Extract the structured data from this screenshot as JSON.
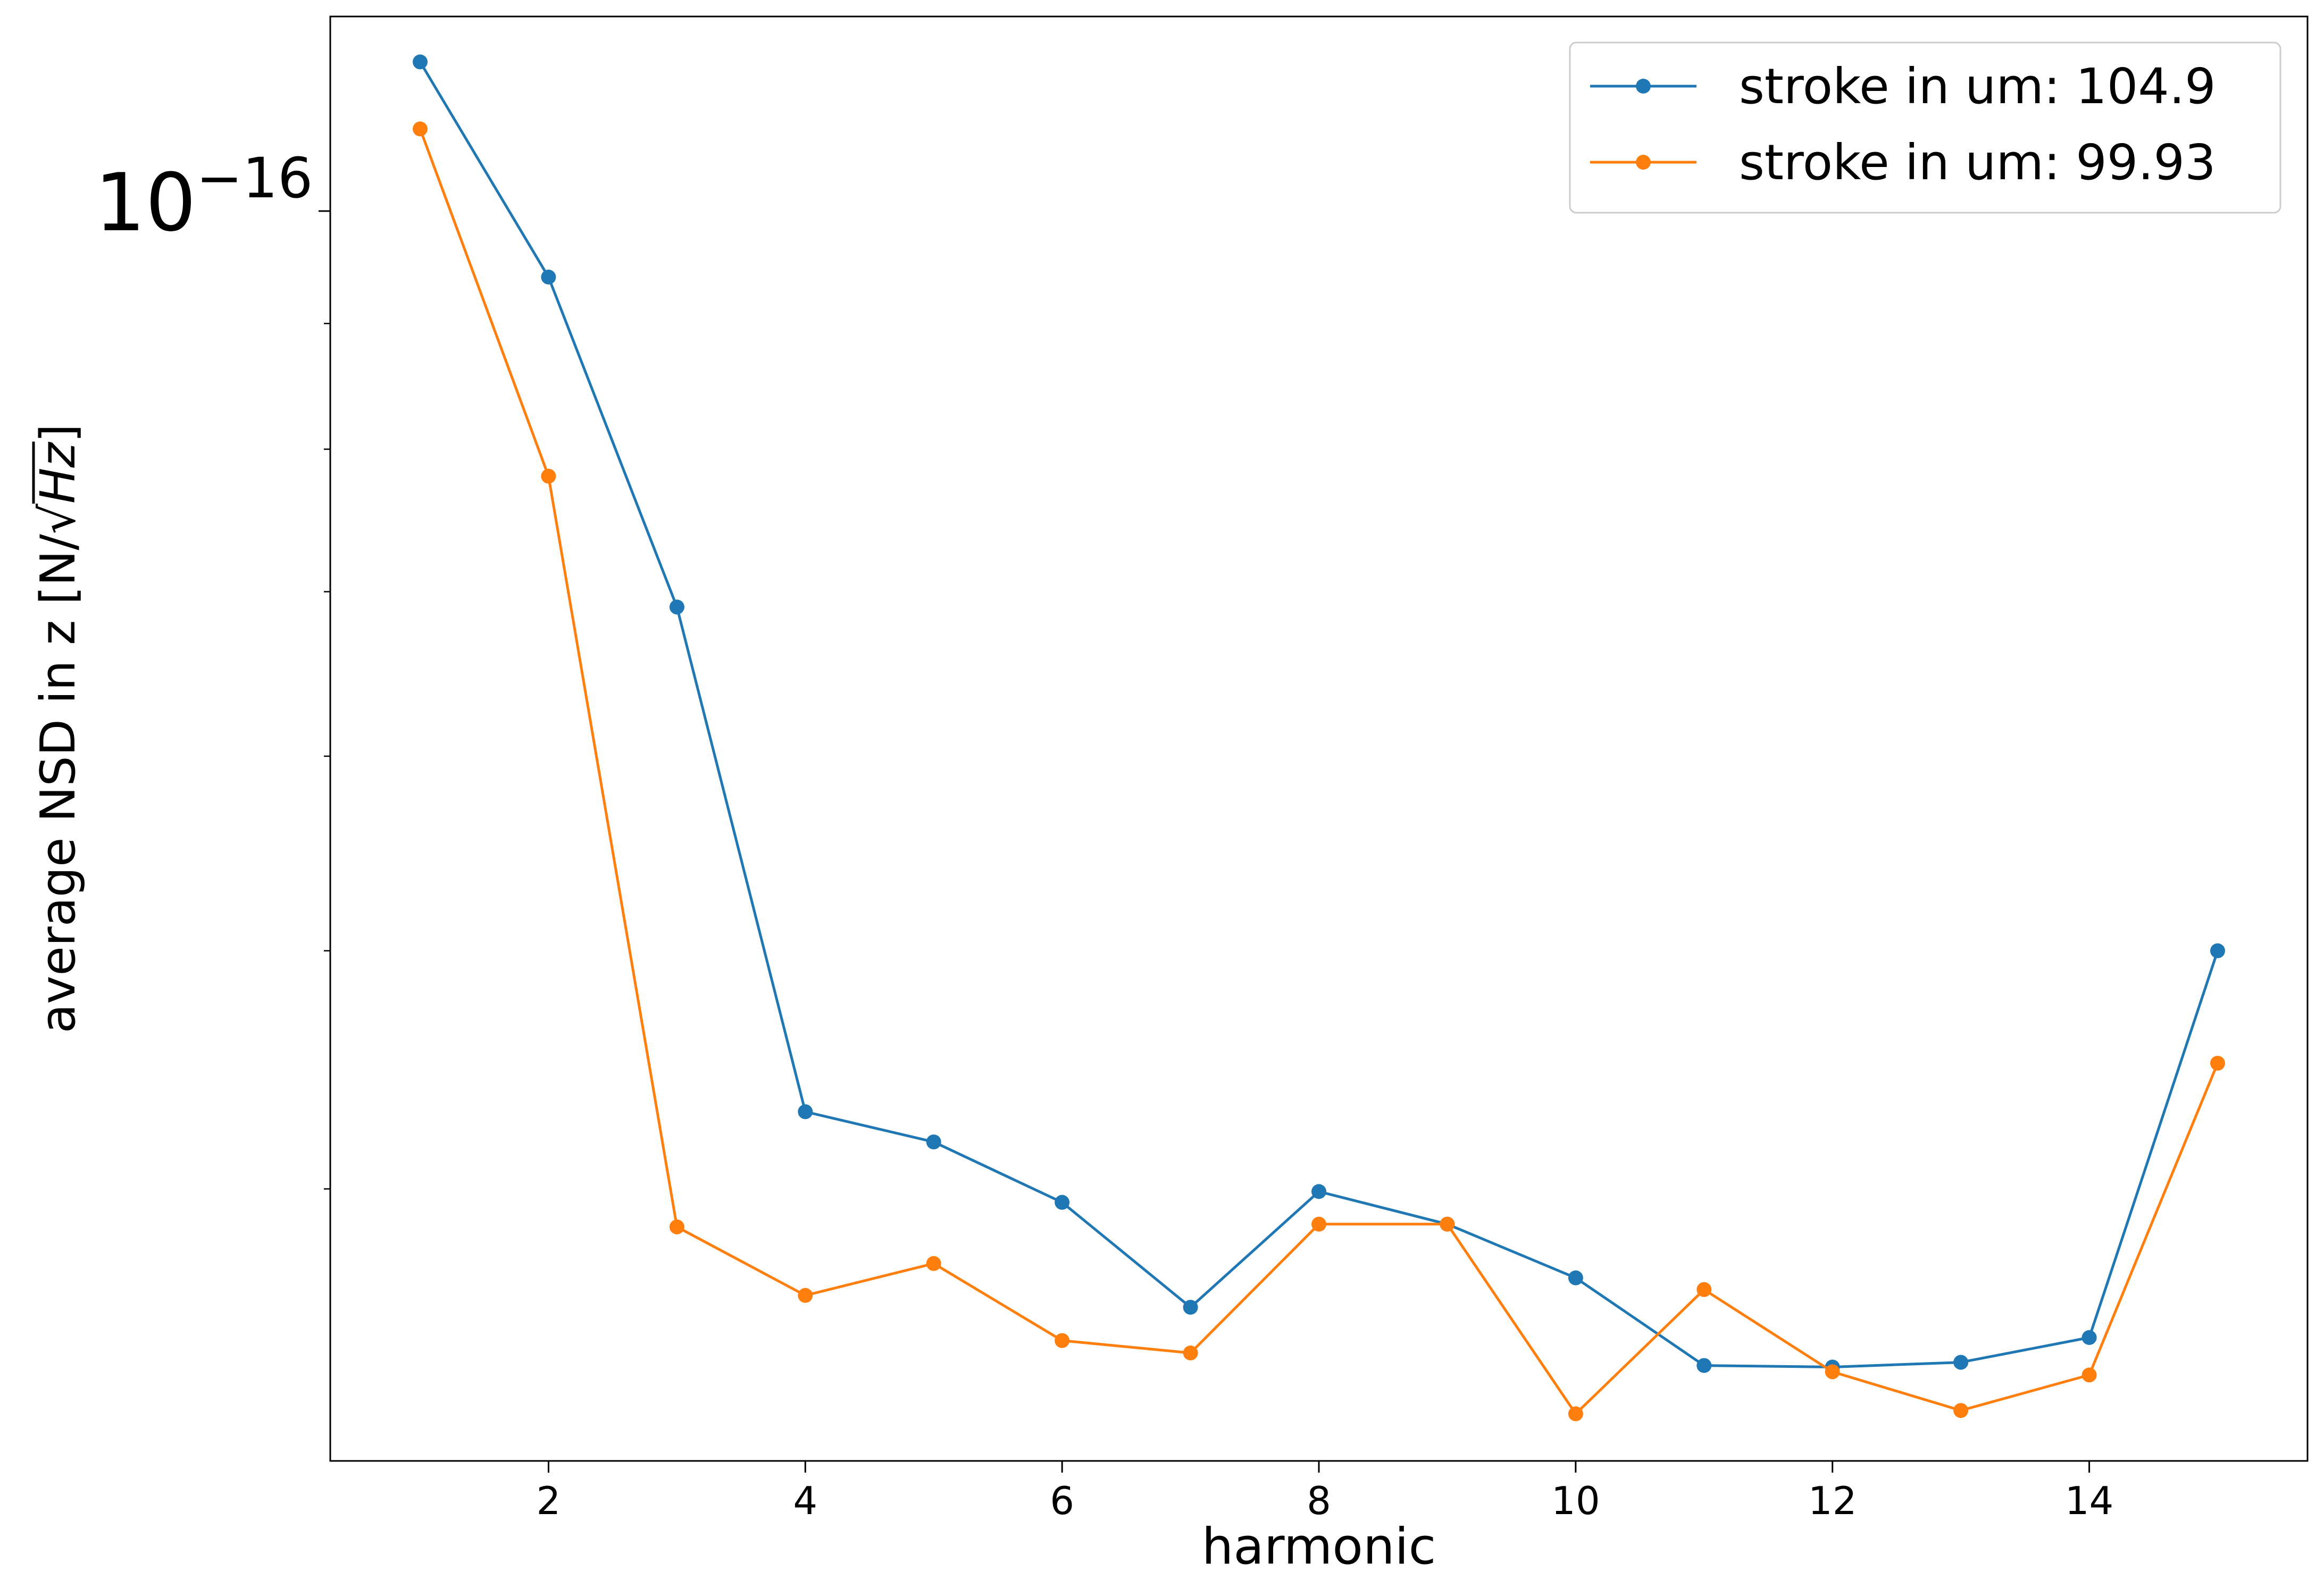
{
  "chart_data": {
    "type": "line",
    "title": "",
    "xlabel": "harmonic",
    "ylabel_prefix": "average NSD in z [N/",
    "ylabel_sqrt": "√",
    "ylabel_radicand": "Hz",
    "ylabel_suffix": "]",
    "yscale": "log",
    "xlim": [
      0.3,
      15.7
    ],
    "ylim": [
      3.1e-17,
      1.2e-16
    ],
    "grid": false,
    "legend_position": "top-right",
    "colors": {
      "series1": "#1f77b4",
      "series2": "#ff7f0e"
    },
    "x_ticks": [
      "2",
      "4",
      "6",
      "8",
      "10",
      "12",
      "14"
    ],
    "y_tick_label": {
      "base": "10",
      "exponent": "−16"
    },
    "y_ticks_major": [
      1e-16
    ],
    "y_ticks_minor": [
      9e-17,
      8e-17,
      7e-17,
      6e-17,
      5e-17,
      4e-17
    ],
    "x": [
      1,
      2,
      3,
      4,
      5,
      6,
      7,
      8,
      9,
      10,
      11,
      12,
      13,
      14,
      15
    ],
    "series": [
      {
        "name": "stroke in um: 104.9",
        "color": "#1f77b4",
        "values": [
          1.15e-16,
          9.4e-17,
          6.9e-17,
          4.3e-17,
          4.18e-17,
          3.95e-17,
          3.58e-17,
          3.99e-17,
          3.87e-17,
          3.68e-17,
          3.39e-17,
          3.385e-17,
          3.4e-17,
          3.48e-17,
          5e-17
        ]
      },
      {
        "name": "stroke in um: 99.93",
        "color": "#ff7f0e",
        "values": [
          1.08e-16,
          7.8e-17,
          3.86e-17,
          3.62e-17,
          3.73e-17,
          3.47e-17,
          3.43e-17,
          3.87e-17,
          3.87e-17,
          3.24e-17,
          3.64e-17,
          3.37e-17,
          3.25e-17,
          3.36e-17,
          4.5e-17
        ]
      }
    ]
  }
}
